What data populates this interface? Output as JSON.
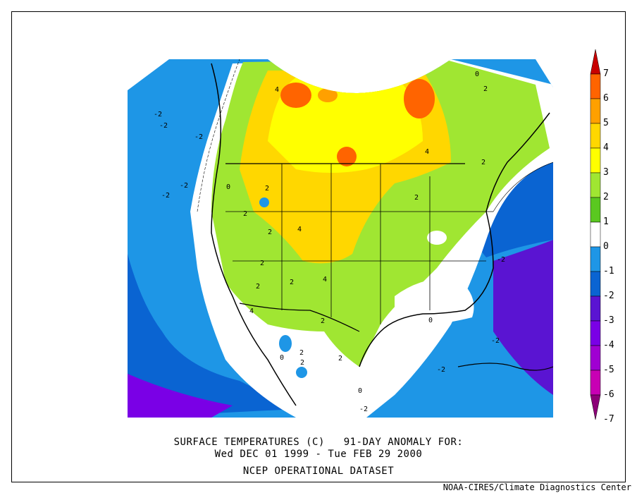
{
  "title_line1": "SURFACE TEMPERATURES (C)   91-DAY ANOMALY FOR:",
  "title_line2": "Wed DEC 01 1999 - Tue FEB 29 2000",
  "title_line3": "NCEP OPERATIONAL DATASET",
  "credit": "NOAA-CIRES/Climate Diagnostics Center",
  "colorbar": {
    "labels": [
      "7",
      "6",
      "5",
      "4",
      "3",
      "2",
      "1",
      "0",
      "-1",
      "-2",
      "-3",
      "-4",
      "-5",
      "-6",
      "-7"
    ],
    "colors": [
      "#c80000",
      "#ff6400",
      "#ffa000",
      "#ffd700",
      "#ffff00",
      "#a0e632",
      "#5ac820",
      "#ffffff",
      "#1e96e6",
      "#0a64d2",
      "#5a14d2",
      "#7a00e6",
      "#a000d2",
      "#c800b4",
      "#8c0078"
    ]
  },
  "contour_labels": [
    "-2",
    "-2",
    "-2",
    "-2",
    "-2",
    "-2",
    "-2",
    "-2",
    "0",
    "0",
    "0",
    "0",
    "0",
    "2",
    "2",
    "2",
    "2",
    "2",
    "2",
    "2",
    "2",
    "2",
    "4",
    "4",
    "4",
    "4",
    "4",
    "2",
    "2",
    "2",
    "2",
    "-2"
  ]
}
